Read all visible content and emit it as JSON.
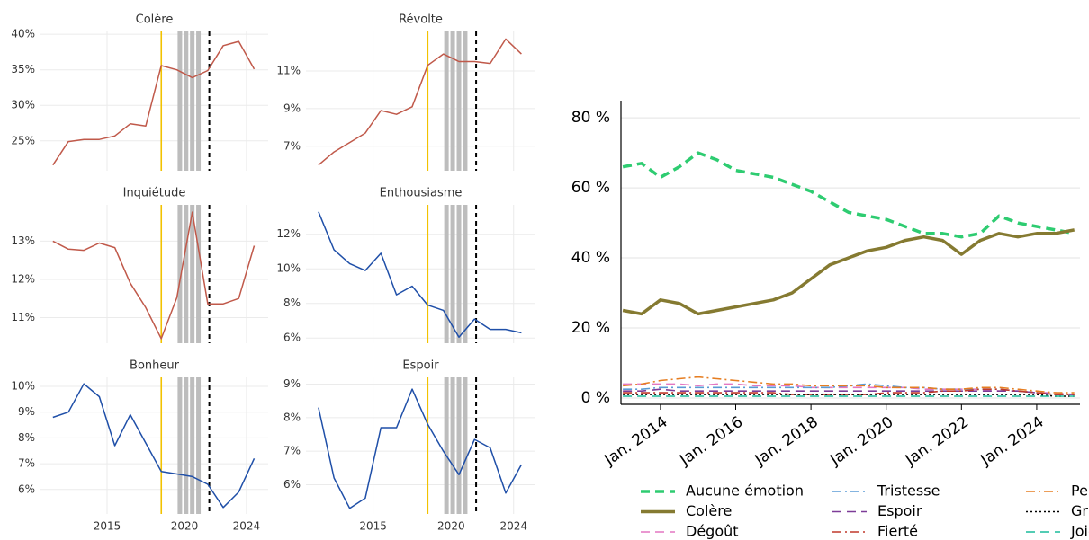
{
  "chart_data": [
    {
      "type": "line",
      "title": "Colère",
      "x": [
        2011.5,
        2012.5,
        2013.5,
        2014.5,
        2015.5,
        2016.5,
        2017.5,
        2018.5,
        2019.5,
        2020.5,
        2021.5,
        2022.5,
        2023.5,
        2024.5
      ],
      "values": [
        21.6,
        24.9,
        25.2,
        25.2,
        25.7,
        27.4,
        27.1,
        35.6,
        35.0,
        33.9,
        34.9,
        38.4,
        39.0,
        35.1
      ],
      "color": "#c0594a",
      "xlim": [
        2010.7,
        2025.4
      ],
      "ylim": [
        20.8,
        40.4
      ],
      "xticks": [
        2015,
        2020,
        2024
      ],
      "show_xtick_labels": false,
      "yticks": [
        {
          "value": 25,
          "label": "25%"
        },
        {
          "value": 30,
          "label": "30%"
        },
        {
          "value": 35,
          "label": "35%"
        },
        {
          "value": 40,
          "label": "40%"
        }
      ],
      "grid": true,
      "vlines": [
        {
          "x": 2018.5,
          "color": "#f2c200",
          "style": "solid"
        },
        {
          "x": 2019.7,
          "color": "#bdbdbd",
          "style": "band"
        },
        {
          "x": 2020.1,
          "color": "#bdbdbd",
          "style": "band"
        },
        {
          "x": 2020.5,
          "color": "#bdbdbd",
          "style": "band"
        },
        {
          "x": 2020.9,
          "color": "#bdbdbd",
          "style": "band"
        },
        {
          "x": 2021.6,
          "color": "#000000",
          "style": "dashed"
        }
      ]
    },
    {
      "type": "line",
      "title": "Révolte",
      "x": [
        2011.5,
        2012.5,
        2013.5,
        2014.5,
        2015.5,
        2016.5,
        2017.5,
        2018.5,
        2019.5,
        2020.5,
        2021.5,
        2022.5,
        2023.5,
        2024.5
      ],
      "values": [
        6.0,
        6.7,
        7.2,
        7.7,
        8.9,
        8.7,
        9.1,
        11.3,
        11.9,
        11.5,
        11.5,
        11.4,
        12.7,
        11.9
      ],
      "color": "#c0594a",
      "xlim": [
        2010.7,
        2025.4
      ],
      "ylim": [
        5.7,
        13.1
      ],
      "xticks": [
        2015,
        2020,
        2024
      ],
      "show_xtick_labels": false,
      "yticks": [
        {
          "value": 7,
          "label": "7%"
        },
        {
          "value": 9,
          "label": "9%"
        },
        {
          "value": 11,
          "label": "11%"
        }
      ],
      "grid": true,
      "vlines": [
        {
          "x": 2018.5,
          "color": "#f2c200",
          "style": "solid"
        },
        {
          "x": 2019.7,
          "color": "#bdbdbd",
          "style": "band"
        },
        {
          "x": 2020.1,
          "color": "#bdbdbd",
          "style": "band"
        },
        {
          "x": 2020.5,
          "color": "#bdbdbd",
          "style": "band"
        },
        {
          "x": 2020.9,
          "color": "#bdbdbd",
          "style": "band"
        },
        {
          "x": 2021.6,
          "color": "#000000",
          "style": "dashed"
        }
      ]
    },
    {
      "type": "line",
      "title": "Inquiétude",
      "x": [
        2011.5,
        2012.5,
        2013.5,
        2014.5,
        2015.5,
        2016.5,
        2017.5,
        2018.5,
        2019.5,
        2020.5,
        2021.5,
        2022.5,
        2023.5,
        2024.5
      ],
      "values": [
        13.0,
        12.79,
        12.76,
        12.95,
        12.83,
        11.9,
        11.26,
        10.45,
        11.52,
        13.76,
        11.36,
        11.36,
        11.5,
        12.88
      ],
      "color": "#c0594a",
      "xlim": [
        2010.7,
        2025.4
      ],
      "ylim": [
        10.33,
        13.95
      ],
      "xticks": [
        2015,
        2020,
        2024
      ],
      "show_xtick_labels": false,
      "yticks": [
        {
          "value": 11,
          "label": "11%"
        },
        {
          "value": 12,
          "label": "12%"
        },
        {
          "value": 13,
          "label": "13%"
        }
      ],
      "grid": true,
      "vlines": [
        {
          "x": 2018.5,
          "color": "#f2c200",
          "style": "solid"
        },
        {
          "x": 2019.7,
          "color": "#bdbdbd",
          "style": "band"
        },
        {
          "x": 2020.1,
          "color": "#bdbdbd",
          "style": "band"
        },
        {
          "x": 2020.5,
          "color": "#bdbdbd",
          "style": "band"
        },
        {
          "x": 2020.9,
          "color": "#bdbdbd",
          "style": "band"
        },
        {
          "x": 2021.6,
          "color": "#000000",
          "style": "dashed"
        }
      ]
    },
    {
      "type": "line",
      "title": "Enthousiasme",
      "x": [
        2011.5,
        2012.5,
        2013.5,
        2014.5,
        2015.5,
        2016.5,
        2017.5,
        2018.5,
        2019.5,
        2020.5,
        2021.5,
        2022.5,
        2023.5,
        2024.5
      ],
      "values": [
        13.3,
        11.1,
        10.3,
        9.9,
        10.9,
        8.5,
        9.0,
        7.9,
        7.6,
        6.05,
        7.1,
        6.5,
        6.5,
        6.3
      ],
      "color": "#1f4fa8",
      "xlim": [
        2010.7,
        2025.4
      ],
      "ylim": [
        5.7,
        13.7
      ],
      "xticks": [
        2015,
        2020,
        2024
      ],
      "show_xtick_labels": false,
      "yticks": [
        {
          "value": 6,
          "label": "6%"
        },
        {
          "value": 8,
          "label": "8%"
        },
        {
          "value": 10,
          "label": "10%"
        },
        {
          "value": 12,
          "label": "12%"
        }
      ],
      "grid": true,
      "vlines": [
        {
          "x": 2018.5,
          "color": "#f2c200",
          "style": "solid"
        },
        {
          "x": 2019.7,
          "color": "#bdbdbd",
          "style": "band"
        },
        {
          "x": 2020.1,
          "color": "#bdbdbd",
          "style": "band"
        },
        {
          "x": 2020.5,
          "color": "#bdbdbd",
          "style": "band"
        },
        {
          "x": 2020.9,
          "color": "#bdbdbd",
          "style": "band"
        },
        {
          "x": 2021.6,
          "color": "#000000",
          "style": "dashed"
        }
      ]
    },
    {
      "type": "line",
      "title": "Bonheur",
      "x": [
        2011.5,
        2012.5,
        2013.5,
        2014.5,
        2015.5,
        2016.5,
        2017.5,
        2018.5,
        2019.5,
        2020.5,
        2021.5,
        2022.5,
        2023.5,
        2024.5
      ],
      "values": [
        8.8,
        9.0,
        10.1,
        9.6,
        7.7,
        8.9,
        7.8,
        6.7,
        6.6,
        6.5,
        6.2,
        5.3,
        5.9,
        7.2
      ],
      "color": "#1f4fa8",
      "xlim": [
        2010.7,
        2025.4
      ],
      "ylim": [
        5.05,
        10.35
      ],
      "xticks": [
        2015,
        2020,
        2024
      ],
      "show_xtick_labels": true,
      "yticks": [
        {
          "value": 6,
          "label": "6%"
        },
        {
          "value": 7,
          "label": "7%"
        },
        {
          "value": 8,
          "label": "8%"
        },
        {
          "value": 9,
          "label": "9%"
        },
        {
          "value": 10,
          "label": "10%"
        }
      ],
      "grid": true,
      "vlines": [
        {
          "x": 2018.5,
          "color": "#f2c200",
          "style": "solid"
        },
        {
          "x": 2019.7,
          "color": "#bdbdbd",
          "style": "band"
        },
        {
          "x": 2020.1,
          "color": "#bdbdbd",
          "style": "band"
        },
        {
          "x": 2020.5,
          "color": "#bdbdbd",
          "style": "band"
        },
        {
          "x": 2020.9,
          "color": "#bdbdbd",
          "style": "band"
        },
        {
          "x": 2021.6,
          "color": "#000000",
          "style": "dashed"
        }
      ]
    },
    {
      "type": "line",
      "title": "Espoir",
      "x": [
        2011.5,
        2012.5,
        2013.5,
        2014.5,
        2015.5,
        2016.5,
        2017.5,
        2018.5,
        2019.5,
        2020.5,
        2021.5,
        2022.5,
        2023.5,
        2024.5
      ],
      "values": [
        8.3,
        6.2,
        5.3,
        5.6,
        7.7,
        7.7,
        8.85,
        7.8,
        7.0,
        6.3,
        7.35,
        7.1,
        5.75,
        6.6
      ],
      "color": "#1f4fa8",
      "xlim": [
        2010.7,
        2025.4
      ],
      "ylim": [
        5.13,
        9.2
      ],
      "xticks": [
        2015,
        2020,
        2024
      ],
      "show_xtick_labels": true,
      "yticks": [
        {
          "value": 6,
          "label": "6%"
        },
        {
          "value": 7,
          "label": "7%"
        },
        {
          "value": 8,
          "label": "8%"
        },
        {
          "value": 9,
          "label": "9%"
        }
      ],
      "grid": true,
      "vlines": [
        {
          "x": 2018.5,
          "color": "#f2c200",
          "style": "solid"
        },
        {
          "x": 2019.7,
          "color": "#bdbdbd",
          "style": "band"
        },
        {
          "x": 2020.1,
          "color": "#bdbdbd",
          "style": "band"
        },
        {
          "x": 2020.5,
          "color": "#bdbdbd",
          "style": "band"
        },
        {
          "x": 2020.9,
          "color": "#bdbdbd",
          "style": "band"
        },
        {
          "x": 2021.6,
          "color": "#000000",
          "style": "dashed"
        }
      ]
    },
    {
      "type": "line",
      "x": [
        2013,
        2013.5,
        2014,
        2014.5,
        2015,
        2015.5,
        2016,
        2016.5,
        2017,
        2017.5,
        2018,
        2018.5,
        2019,
        2019.5,
        2020,
        2020.5,
        2021,
        2021.5,
        2022,
        2022.5,
        2023,
        2023.5,
        2024,
        2024.5,
        2025
      ],
      "xlim": [
        2012.95,
        2025.15
      ],
      "ylim": [
        -1.8,
        84.9
      ],
      "xticks": [
        {
          "value": 2014,
          "label": "Jan. 2014"
        },
        {
          "value": 2016,
          "label": "Jan. 2016"
        },
        {
          "value": 2018,
          "label": "Jan. 2018"
        },
        {
          "value": 2020,
          "label": "Jan. 2020"
        },
        {
          "value": 2022,
          "label": "Jan. 2022"
        },
        {
          "value": 2024,
          "label": "Jan. 2024"
        }
      ],
      "yticks": [
        {
          "value": 0,
          "label": "0 %"
        },
        {
          "value": 20,
          "label": "20 %"
        },
        {
          "value": 40,
          "label": "40 %"
        },
        {
          "value": 60,
          "label": "60 %"
        },
        {
          "value": 80,
          "label": "80 %"
        }
      ],
      "grid": true,
      "legend": "bottom",
      "series": [
        {
          "name": "Aucune émotion",
          "color": "#2ecc71",
          "dash": "dashed",
          "linewidth": 3.5,
          "values": [
            66,
            67,
            63,
            66,
            70,
            68,
            65,
            64,
            63,
            61,
            59,
            56,
            53,
            52,
            51,
            49,
            47,
            47,
            46,
            47,
            52,
            50,
            49,
            48,
            47
          ]
        },
        {
          "name": "Colère",
          "color": "#857a31",
          "dash": "solid",
          "linewidth": 3.5,
          "values": [
            25,
            24,
            28,
            27,
            24,
            25,
            26,
            27,
            28,
            30,
            34,
            38,
            40,
            42,
            43,
            45,
            46,
            45,
            41,
            45,
            47,
            46,
            47,
            47,
            48
          ]
        },
        {
          "name": "Dégoût",
          "color": "#e377c2",
          "dash": "dashed",
          "linewidth": 1.6,
          "values": [
            4,
            4,
            4,
            4,
            3.5,
            4,
            4,
            3.5,
            3.5,
            3.5,
            3,
            3,
            3,
            3,
            3,
            3,
            2.5,
            2.5,
            2.5,
            2.5,
            2,
            2,
            1.5,
            1.5,
            1
          ]
        },
        {
          "name": "Tristesse",
          "color": "#5b9bd5",
          "dash": "dashdot",
          "linewidth": 1.6,
          "values": [
            2.5,
            2.5,
            3,
            3,
            3,
            3,
            3,
            3,
            3,
            3,
            3,
            3,
            3.5,
            4,
            3.5,
            3,
            3,
            2.5,
            2.5,
            2.5,
            2.5,
            2,
            1.5,
            1,
            1
          ]
        },
        {
          "name": "Espoir",
          "color": "#7d3c98",
          "dash": "dashed",
          "linewidth": 1.6,
          "values": [
            2,
            2,
            2.5,
            2,
            2,
            2,
            2,
            2,
            2,
            2,
            2,
            2,
            2,
            2,
            2,
            2,
            2,
            2,
            2,
            2,
            2,
            2,
            1.5,
            1,
            1
          ]
        },
        {
          "name": "Fierté",
          "color": "#c0392b",
          "dash": "dashdot",
          "linewidth": 1.6,
          "values": [
            1.5,
            1.5,
            1.5,
            1.5,
            1.5,
            1.5,
            1.5,
            1.5,
            1.5,
            1,
            1,
            1,
            1,
            1,
            1.5,
            1.5,
            1.5,
            2,
            2,
            2.5,
            2.5,
            2,
            1.5,
            1,
            1
          ]
        },
        {
          "name": "Peur",
          "color": "#e67e22",
          "dash": "dashdot",
          "linewidth": 1.6,
          "values": [
            3.5,
            4,
            5,
            5.5,
            6,
            5.5,
            5,
            4.5,
            4,
            4,
            3.5,
            3.5,
            3.5,
            3.5,
            3,
            3,
            3,
            2.5,
            2.5,
            3,
            3,
            2.5,
            2,
            1.5,
            1.5
          ]
        },
        {
          "name": "Gratitude",
          "color": "#000000",
          "dash": "dotted",
          "linewidth": 1.6,
          "values": [
            1,
            1,
            1,
            1,
            1,
            1,
            1,
            1,
            1,
            1,
            1,
            1,
            1,
            1,
            1,
            1,
            1,
            1,
            1,
            1,
            1,
            1,
            1,
            0.5,
            0.5
          ]
        },
        {
          "name": "Joie",
          "color": "#1abc9c",
          "dash": "dashed",
          "linewidth": 1.6,
          "values": [
            0.5,
            0.5,
            0.5,
            0.5,
            0.5,
            0.5,
            0.5,
            0.5,
            0.5,
            0.5,
            0.5,
            0.5,
            0.5,
            0.5,
            0.5,
            0.5,
            0.5,
            0.5,
            0.5,
            0.5,
            0.5,
            0.5,
            0.5,
            0.5,
            0.5
          ]
        }
      ]
    }
  ]
}
